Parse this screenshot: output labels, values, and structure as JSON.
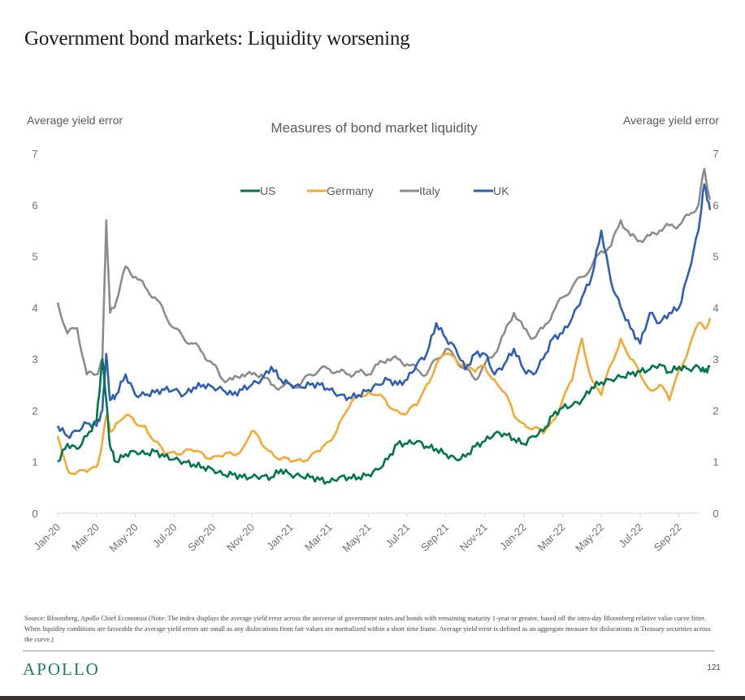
{
  "page": {
    "title": "Government bond markets: Liquidity worsening",
    "source_note": "Source: Bloomberg, Apollo Chief Economist (Note: The index displays the average yield error across the universe of government notes and bonds with remaining maturity 1-year or greater, based off the intra-day Bloomberg relative value curve fitter. When liquidity conditions are favorable the average yield errors are small as any dislocations from fair values are normalized within a short time frame. Average yield error is defined as an aggregate measure for dislocations in Treasury securities across the curve.)",
    "brand": "APOLLO",
    "page_number": "121"
  },
  "chart_data": {
    "type": "line",
    "title": "Measures of bond market liquidity",
    "ylabel_left": "Average yield error",
    "ylabel_right": "Average yield error",
    "xlabel": "",
    "ylim": [
      0,
      7
    ],
    "yticks": [
      "0",
      "1",
      "2",
      "3",
      "4",
      "5",
      "6",
      "7"
    ],
    "grid": false,
    "legend_position": "top-center",
    "x_ticks": [
      "Jan-20",
      "Mar-20",
      "May-20",
      "Jul-20",
      "Sep-20",
      "Nov-20",
      "Jan-21",
      "Mar-21",
      "May-21",
      "Jul-21",
      "Sep-21",
      "Nov-21",
      "Jan-22",
      "Mar-22",
      "May-22",
      "Jul-22",
      "Sep-22"
    ],
    "x_unit": "months since Jan-2020",
    "x": [
      0,
      0.5,
      1,
      1.5,
      2,
      2.3,
      2.5,
      2.7,
      3,
      3.5,
      4,
      4.5,
      5,
      5.5,
      6,
      6.5,
      7,
      7.5,
      8,
      8.5,
      9,
      9.5,
      10,
      10.5,
      11,
      11.5,
      12,
      12.5,
      13,
      13.5,
      14,
      14.5,
      15,
      15.5,
      16,
      16.5,
      17,
      17.5,
      18,
      18.5,
      19,
      19.5,
      20,
      20.5,
      21,
      21.5,
      22,
      22.5,
      23,
      23.5,
      24,
      24.5,
      25,
      25.5,
      26,
      26.5,
      27,
      27.5,
      28,
      28.5,
      29,
      29.5,
      30,
      30.5,
      31,
      31.5,
      32,
      32.5,
      33,
      33.3,
      33.6
    ],
    "series": [
      {
        "name": "US",
        "color": "#00774a",
        "values": [
          1.0,
          1.35,
          1.25,
          1.5,
          1.8,
          3.0,
          2.2,
          1.3,
          1.0,
          1.15,
          1.2,
          1.15,
          1.2,
          1.1,
          1.05,
          1.0,
          0.95,
          0.9,
          0.85,
          0.75,
          0.75,
          0.7,
          0.7,
          0.72,
          0.7,
          0.85,
          0.75,
          0.72,
          0.7,
          0.65,
          0.6,
          0.7,
          0.7,
          0.7,
          0.75,
          0.85,
          1.05,
          1.35,
          1.35,
          1.4,
          1.3,
          1.25,
          1.15,
          1.05,
          1.1,
          1.3,
          1.4,
          1.55,
          1.55,
          1.45,
          1.35,
          1.5,
          1.6,
          1.9,
          2.05,
          2.1,
          2.2,
          2.45,
          2.55,
          2.6,
          2.65,
          2.7,
          2.75,
          2.8,
          2.9,
          2.75,
          2.85,
          2.8,
          2.85,
          2.75,
          2.85
        ]
      },
      {
        "name": "Germany",
        "color": "#f7a833",
        "values": [
          1.5,
          0.85,
          0.8,
          0.8,
          0.9,
          1.4,
          1.9,
          1.6,
          1.75,
          1.9,
          1.75,
          1.7,
          1.4,
          1.15,
          1.2,
          1.2,
          1.2,
          1.15,
          1.1,
          1.1,
          1.15,
          1.25,
          1.6,
          1.35,
          1.2,
          1.05,
          1.0,
          1.05,
          1.1,
          1.2,
          1.4,
          1.75,
          2.05,
          2.3,
          2.35,
          2.3,
          2.1,
          2.0,
          1.95,
          2.1,
          2.5,
          2.9,
          3.1,
          3.0,
          2.9,
          2.75,
          2.85,
          2.6,
          2.35,
          1.9,
          1.75,
          1.65,
          1.55,
          1.8,
          2.2,
          2.6,
          3.4,
          2.6,
          2.3,
          2.9,
          3.4,
          3.0,
          2.7,
          2.4,
          2.5,
          2.2,
          2.8,
          3.2,
          3.7,
          3.6,
          3.8
        ]
      },
      {
        "name": "Italy",
        "color": "#8c8c8c",
        "values": [
          4.1,
          3.5,
          3.6,
          2.7,
          2.7,
          3.0,
          5.7,
          3.9,
          4.1,
          4.8,
          4.6,
          4.4,
          4.2,
          3.9,
          3.6,
          3.4,
          3.3,
          3.1,
          2.9,
          2.6,
          2.6,
          2.7,
          2.7,
          2.7,
          2.5,
          2.45,
          2.5,
          2.5,
          2.7,
          2.8,
          2.8,
          2.75,
          2.7,
          2.75,
          2.7,
          2.9,
          3.0,
          3.0,
          2.9,
          2.8,
          2.7,
          3.0,
          3.2,
          3.0,
          2.8,
          2.6,
          2.9,
          3.1,
          3.5,
          3.9,
          3.6,
          3.4,
          3.6,
          3.9,
          4.2,
          4.4,
          4.6,
          4.8,
          5.1,
          5.2,
          5.7,
          5.4,
          5.3,
          5.4,
          5.5,
          5.6,
          5.6,
          5.8,
          6.0,
          6.7,
          6.1
        ]
      },
      {
        "name": "UK",
        "color": "#2e5fb4",
        "values": [
          1.7,
          1.5,
          1.6,
          1.75,
          1.7,
          2.0,
          3.1,
          2.2,
          2.3,
          2.7,
          2.3,
          2.3,
          2.35,
          2.4,
          2.4,
          2.3,
          2.45,
          2.5,
          2.45,
          2.4,
          2.3,
          2.4,
          2.5,
          2.6,
          2.85,
          2.6,
          2.5,
          2.45,
          2.5,
          2.5,
          2.4,
          2.3,
          2.25,
          2.3,
          2.4,
          2.5,
          2.6,
          2.5,
          2.6,
          2.9,
          3.1,
          3.7,
          3.4,
          3.2,
          2.8,
          3.1,
          3.1,
          2.7,
          2.9,
          3.2,
          2.8,
          2.7,
          3.0,
          3.4,
          3.5,
          3.8,
          4.2,
          4.6,
          5.5,
          4.5,
          4.0,
          3.6,
          3.3,
          3.9,
          3.7,
          3.9,
          4.0,
          4.7,
          5.5,
          6.4,
          5.9
        ]
      }
    ]
  }
}
